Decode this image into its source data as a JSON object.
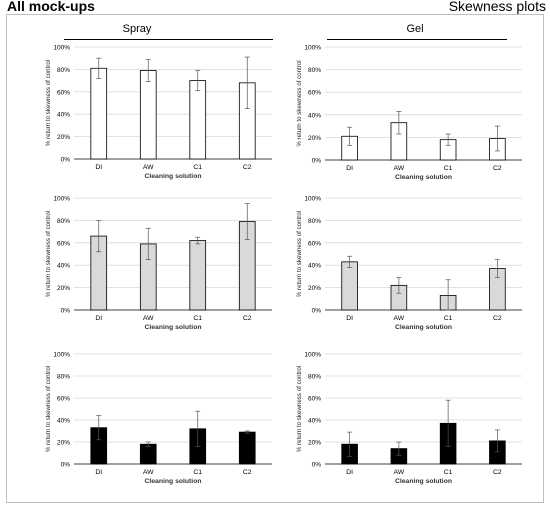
{
  "header": {
    "left_title": "All mock-ups",
    "right_title": "Skewness plots"
  },
  "columns": [
    {
      "title": "Spray"
    },
    {
      "title": "Gel"
    }
  ],
  "colors": {
    "white_fill": "#ffffff",
    "gray_fill": "#d9d9d9",
    "black_fill": "#000000",
    "stroke": "#000000",
    "gridline": "#d9d9d9"
  },
  "chart_data": [
    {
      "type": "bar",
      "categories": [
        "DI",
        "AW",
        "C1",
        "C2"
      ],
      "values": [
        81,
        79,
        70,
        68
      ],
      "errors": [
        9,
        10,
        9,
        23
      ],
      "xlabel": "Cleaning solution",
      "ylabel": "% return to skewness of control",
      "yticks": [
        "0%",
        "20%",
        "40%",
        "60%",
        "80%",
        "100%"
      ],
      "ylim": [
        0,
        100
      ],
      "fill": "#ffffff"
    },
    {
      "type": "bar",
      "categories": [
        "DI",
        "AW",
        "C1",
        "C2"
      ],
      "values": [
        21,
        33,
        18,
        19
      ],
      "errors": [
        8,
        10,
        5,
        11
      ],
      "xlabel": "Cleaning solution",
      "ylabel": "% return to skewness of control",
      "yticks": [
        "0%",
        "20%",
        "40%",
        "60%",
        "80%",
        "100%"
      ],
      "ylim": [
        0,
        100
      ],
      "fill": "#ffffff"
    },
    {
      "type": "bar",
      "categories": [
        "DI",
        "AW",
        "C1",
        "C2"
      ],
      "values": [
        66,
        59,
        62,
        79
      ],
      "errors": [
        14,
        14,
        3,
        16
      ],
      "xlabel": "Cleaning solution",
      "ylabel": "% return to skewness of control",
      "yticks": [
        "0%",
        "20%",
        "40%",
        "60%",
        "80%",
        "100%"
      ],
      "ylim": [
        0,
        100
      ],
      "fill": "#d9d9d9"
    },
    {
      "type": "bar",
      "categories": [
        "DI",
        "AW",
        "C1",
        "C2"
      ],
      "values": [
        43,
        22,
        13,
        37
      ],
      "errors": [
        5,
        7,
        14,
        8
      ],
      "xlabel": "Cleaning solution",
      "ylabel": "% return to skewness of control",
      "yticks": [
        "0%",
        "20%",
        "40%",
        "60%",
        "80%",
        "100%"
      ],
      "ylim": [
        0,
        100
      ],
      "fill": "#d9d9d9"
    },
    {
      "type": "bar",
      "categories": [
        "DI",
        "AW",
        "C1",
        "C2"
      ],
      "values": [
        33,
        18,
        32,
        29
      ],
      "errors": [
        11,
        2,
        16,
        1
      ],
      "xlabel": "Cleaning solution",
      "ylabel": "% return to skewness of control",
      "yticks": [
        "0%",
        "20%",
        "40%",
        "60%",
        "80%",
        "100%"
      ],
      "ylim": [
        0,
        100
      ],
      "fill": "#000000"
    },
    {
      "type": "bar",
      "categories": [
        "DI",
        "AW",
        "C1",
        "C2"
      ],
      "values": [
        18,
        14,
        37,
        21
      ],
      "errors": [
        11,
        6,
        21,
        10
      ],
      "xlabel": "Cleaning solution",
      "ylabel": "% return to skewness of control",
      "yticks": [
        "0%",
        "20%",
        "40%",
        "60%",
        "80%",
        "100%"
      ],
      "ylim": [
        0,
        100
      ],
      "fill": "#000000"
    }
  ]
}
